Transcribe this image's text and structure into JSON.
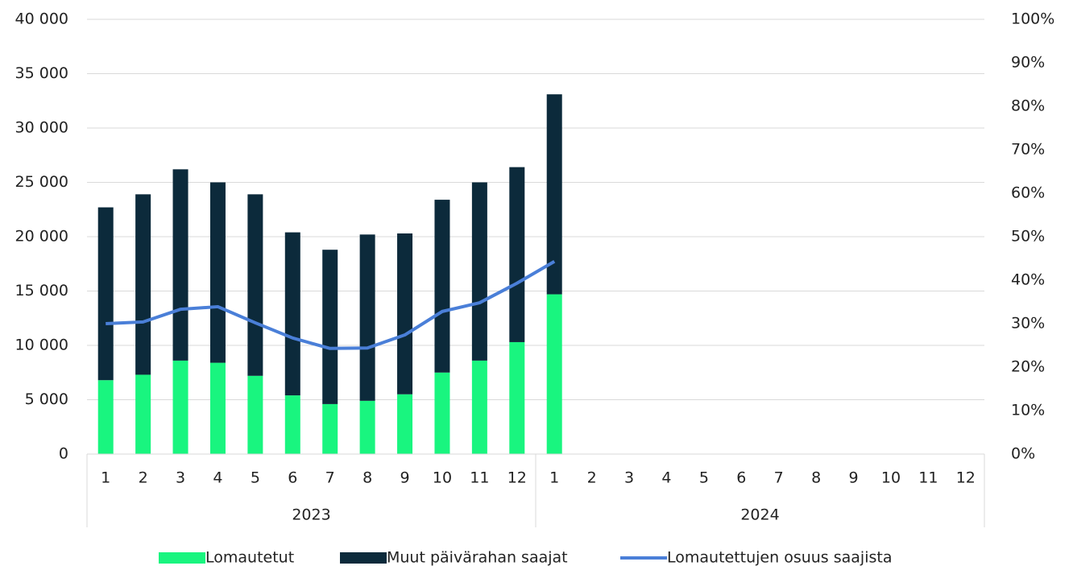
{
  "chart_data": {
    "type": "bar",
    "categories": [
      "1",
      "2",
      "3",
      "4",
      "5",
      "6",
      "7",
      "8",
      "9",
      "10",
      "11",
      "12",
      "1",
      "2",
      "3",
      "4",
      "5",
      "6",
      "7",
      "8",
      "9",
      "10",
      "11",
      "12"
    ],
    "groups": [
      "2023",
      "2024"
    ],
    "series": [
      {
        "name": "Lomautetut",
        "color": "#19f57f",
        "stack": "a",
        "values": [
          6800,
          7300,
          8600,
          8400,
          7200,
          5400,
          4600,
          4900,
          5500,
          7500,
          8600,
          10300,
          14700,
          null,
          null,
          null,
          null,
          null,
          null,
          null,
          null,
          null,
          null,
          null
        ]
      },
      {
        "name": "Muut päivärahan saajat",
        "color": "#0c2a3b",
        "stack": "a",
        "values": [
          15900,
          16600,
          17600,
          16600,
          16700,
          15000,
          14200,
          15300,
          14800,
          15900,
          16400,
          16100,
          18400,
          null,
          null,
          null,
          null,
          null,
          null,
          null,
          null,
          null,
          null,
          null
        ]
      },
      {
        "name": "Lomautettujen osuus saajista",
        "color": "#4a7fd8",
        "type": "line",
        "axis": "y2",
        "values": [
          30.0,
          30.4,
          33.3,
          33.9,
          30.2,
          26.7,
          24.3,
          24.4,
          27.4,
          32.8,
          34.8,
          39.3,
          44.3,
          null,
          null,
          null,
          null,
          null,
          null,
          null,
          null,
          null,
          null,
          null
        ]
      }
    ],
    "ylim": [
      0,
      40000
    ],
    "yticks": [
      0,
      {
        "value": 5000,
        "label": "5 000"
      },
      {
        "value": 10000,
        "label": "10 000"
      },
      {
        "value": 15000,
        "label": "15 000"
      },
      {
        "value": 20000,
        "label": "20 000"
      },
      {
        "value": 25000,
        "label": "25 000"
      },
      {
        "value": 30000,
        "label": "30 000"
      },
      {
        "value": 35000,
        "label": "35 000"
      },
      {
        "value": 40000,
        "label": "40 000"
      }
    ],
    "y2lim": [
      0,
      100
    ],
    "y2ticks": [
      {
        "value": 0,
        "label": "0%"
      },
      {
        "value": 10,
        "label": "10%"
      },
      {
        "value": 20,
        "label": "20%"
      },
      {
        "value": 30,
        "label": "30%"
      },
      {
        "value": 40,
        "label": "40%"
      },
      {
        "value": 50,
        "label": "50%"
      },
      {
        "value": 60,
        "label": "60%"
      },
      {
        "value": 70,
        "label": "70%"
      },
      {
        "value": 80,
        "label": "80%"
      },
      {
        "value": 90,
        "label": "90%"
      },
      {
        "value": 100,
        "label": "100%"
      }
    ],
    "grid": true,
    "legend": "bottom"
  }
}
